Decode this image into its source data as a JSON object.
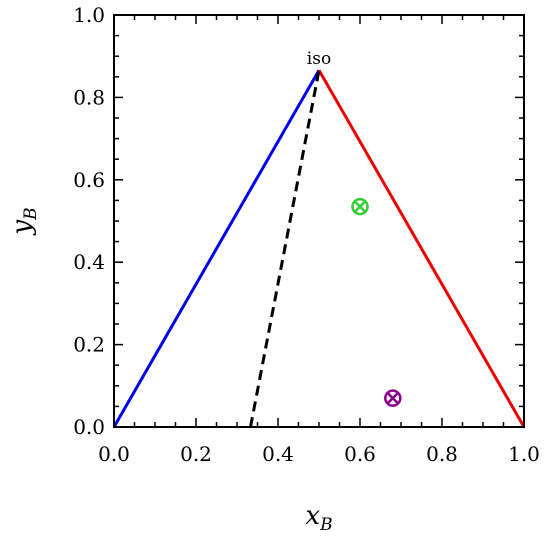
{
  "chart_data": {
    "type": "line",
    "xlabel": "x",
    "xlabel_sub": "B",
    "ylabel": "y",
    "ylabel_sub": "B",
    "xlim": [
      0.0,
      1.0
    ],
    "ylim": [
      0.0,
      1.0
    ],
    "x_ticks": [
      "0.0",
      "0.2",
      "0.4",
      "0.6",
      "0.8",
      "1.0"
    ],
    "y_ticks": [
      "0.0",
      "0.2",
      "0.4",
      "0.6",
      "0.8",
      "1.0"
    ],
    "grid": false,
    "legend": "none",
    "series": [
      {
        "color": "#0000ee",
        "style": "solid",
        "points": [
          [
            0.0,
            0.0
          ],
          [
            0.5,
            0.866
          ]
        ]
      },
      {
        "color": "#ee0000",
        "style": "solid",
        "points": [
          [
            0.5,
            0.866
          ],
          [
            1.0,
            0.0
          ]
        ]
      },
      {
        "color": "#000000",
        "style": "dashed",
        "points": [
          [
            0.333,
            0.0
          ],
          [
            0.5,
            0.866
          ]
        ]
      }
    ],
    "markers": [
      {
        "x": 0.6,
        "y": 0.535,
        "color": "#33cc33",
        "symbol": "circle-x"
      },
      {
        "x": 0.68,
        "y": 0.07,
        "color": "#880088",
        "symbol": "circle-x"
      }
    ],
    "annotations": [
      {
        "text": "iso",
        "x": 0.5,
        "y": 0.866
      }
    ]
  }
}
